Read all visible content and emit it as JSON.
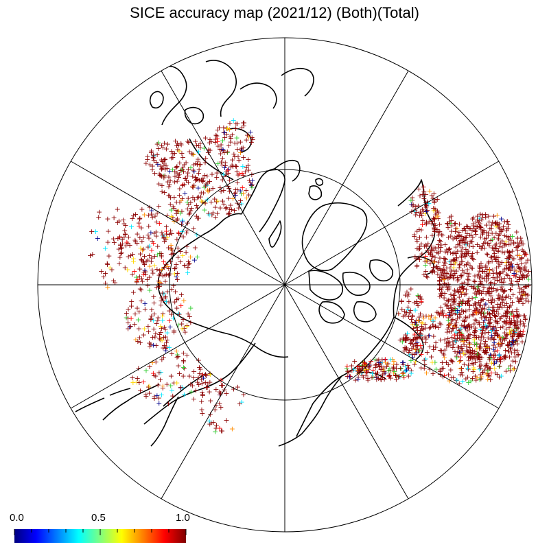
{
  "title": "SICE accuracy map (2021/12) (Both)(Total)",
  "colorbar": {
    "labels": [
      "0.0",
      "0.5",
      "1.0"
    ],
    "min": 0.0,
    "max": 1.0,
    "colors": [
      "#00007f",
      "#0000ff",
      "#007fff",
      "#00ffff",
      "#7fff7f",
      "#ffff00",
      "#ff7f00",
      "#ff0000",
      "#7f0000"
    ]
  },
  "map": {
    "projection": "north polar stereographic",
    "meridian_lines": 12,
    "latitude_circle": true,
    "marker": "+",
    "marker_colors": {
      "dominant": "#8b0000",
      "accents": [
        "#ff0000",
        "#ff8c00",
        "#ffd700",
        "#00e5ff",
        "#00008b",
        "#32cd32"
      ]
    }
  }
}
